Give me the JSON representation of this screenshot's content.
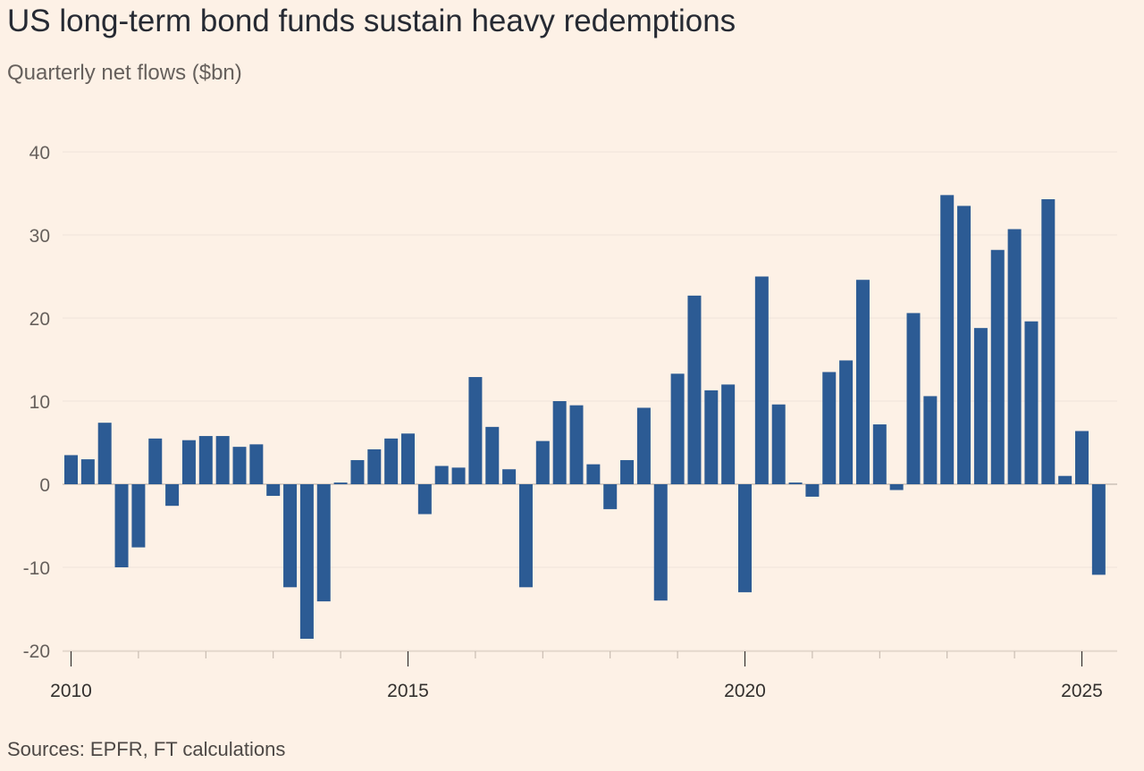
{
  "header": {
    "title": "US long-term bond funds sustain heavy redemptions",
    "subtitle": "Quarterly net flows ($bn)"
  },
  "footer": {
    "source": "Sources: EPFR, FT calculations"
  },
  "chart_data": {
    "type": "bar",
    "title": "US long-term bond funds sustain heavy redemptions",
    "subtitle": "Quarterly net flows ($bn)",
    "xlabel": "",
    "ylabel": "",
    "ylim": [
      -20,
      40
    ],
    "yticks": [
      40,
      30,
      20,
      10,
      0,
      -10,
      -20
    ],
    "xticks": [
      "2010",
      "2015",
      "2020",
      "2025"
    ],
    "grid": true,
    "bar_color": "#2c5b94",
    "categories": [
      "2010 Q1",
      "2010 Q2",
      "2010 Q3",
      "2010 Q4",
      "2011 Q1",
      "2011 Q2",
      "2011 Q3",
      "2011 Q4",
      "2012 Q1",
      "2012 Q2",
      "2012 Q3",
      "2012 Q4",
      "2013 Q1",
      "2013 Q2",
      "2013 Q3",
      "2013 Q4",
      "2014 Q1",
      "2014 Q2",
      "2014 Q3",
      "2014 Q4",
      "2015 Q1",
      "2015 Q2",
      "2015 Q3",
      "2015 Q4",
      "2016 Q1",
      "2016 Q2",
      "2016 Q3",
      "2016 Q4",
      "2017 Q1",
      "2017 Q2",
      "2017 Q3",
      "2017 Q4",
      "2018 Q1",
      "2018 Q2",
      "2018 Q3",
      "2018 Q4",
      "2019 Q1",
      "2019 Q2",
      "2019 Q3",
      "2019 Q4",
      "2020 Q1",
      "2020 Q2",
      "2020 Q3",
      "2020 Q4",
      "2021 Q1",
      "2021 Q2",
      "2021 Q3",
      "2021 Q4",
      "2022 Q1",
      "2022 Q2",
      "2022 Q3",
      "2022 Q4",
      "2023 Q1",
      "2023 Q2",
      "2023 Q3",
      "2023 Q4",
      "2024 Q1",
      "2024 Q2",
      "2024 Q3",
      "2024 Q4",
      "2025 Q1",
      "2025 Q2"
    ],
    "values": [
      3.5,
      3.0,
      7.4,
      -10.0,
      -7.6,
      5.5,
      -2.6,
      5.3,
      5.8,
      5.8,
      4.5,
      4.8,
      -1.4,
      -12.4,
      -18.6,
      -14.1,
      0.2,
      2.9,
      4.2,
      5.5,
      6.1,
      -3.6,
      2.2,
      2.0,
      12.9,
      6.9,
      1.8,
      -12.4,
      5.2,
      10.0,
      9.5,
      2.4,
      -3.0,
      2.9,
      9.2,
      -14.0,
      13.3,
      22.7,
      11.3,
      12.0,
      -13.0,
      25.0,
      9.6,
      0.2,
      -1.5,
      13.5,
      14.9,
      24.6,
      7.2,
      -0.7,
      20.6,
      10.6,
      34.8,
      33.5,
      18.8,
      28.2,
      30.7,
      19.6,
      34.3,
      1.0,
      6.4,
      -10.9
    ]
  }
}
